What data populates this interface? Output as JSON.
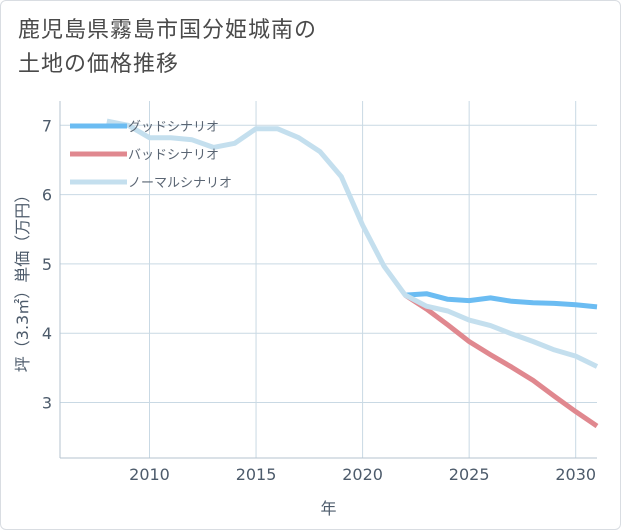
{
  "title": {
    "line1": "鹿児島県霧島市国分姫城南の",
    "line2": "土地の価格推移"
  },
  "colors": {
    "good": "#6bbcf2",
    "bad": "#e0888f",
    "normal": "#c4dfee",
    "grid": "#c9d9e4",
    "axis": "#b5c3cf",
    "text": "#4d5b6b"
  },
  "chart_data": {
    "type": "line",
    "title": "鹿児島県霧島市国分姫城南の土地の価格推移",
    "xlabel": "年",
    "ylabel": "坪（3.3㎡）単価（万円）",
    "xlim": [
      2005.8,
      2031
    ],
    "ylim": [
      2.2,
      7.35
    ],
    "xticks": [
      2010,
      2015,
      2020,
      2025,
      2030
    ],
    "yticks": [
      3,
      4,
      5,
      6,
      7
    ],
    "xtick_labels": [
      "2010",
      "2015",
      "2020",
      "2025",
      "2030"
    ],
    "ytick_labels": [
      "3",
      "4",
      "5",
      "6",
      "7"
    ],
    "legend_position": "top-left",
    "series": [
      {
        "name": "グッドシナリオ",
        "key": "good",
        "x": [
          2022,
          2023,
          2024,
          2025,
          2026,
          2027,
          2028,
          2029,
          2030,
          2031
        ],
        "y": [
          4.55,
          4.57,
          4.49,
          4.47,
          4.51,
          4.46,
          4.44,
          4.43,
          4.41,
          4.38
        ]
      },
      {
        "name": "バッドシナリオ",
        "key": "bad",
        "x": [
          2022,
          2023,
          2024,
          2025,
          2026,
          2027,
          2028,
          2029,
          2030,
          2031
        ],
        "y": [
          4.55,
          4.35,
          4.12,
          3.88,
          3.69,
          3.51,
          3.32,
          3.09,
          2.87,
          2.66
        ]
      },
      {
        "name": "ノーマルシナリオ",
        "key": "normal",
        "x": [
          2008,
          2009,
          2010,
          2011,
          2012,
          2013,
          2014,
          2015,
          2016,
          2017,
          2018,
          2019,
          2020,
          2021,
          2022,
          2023,
          2024,
          2025,
          2026,
          2027,
          2028,
          2029,
          2030,
          2031
        ],
        "y": [
          7.06,
          7.0,
          6.82,
          6.82,
          6.79,
          6.68,
          6.74,
          6.95,
          6.95,
          6.82,
          6.62,
          6.26,
          5.56,
          4.97,
          4.55,
          4.39,
          4.32,
          4.19,
          4.11,
          3.99,
          3.88,
          3.76,
          3.67,
          3.52
        ]
      }
    ]
  }
}
